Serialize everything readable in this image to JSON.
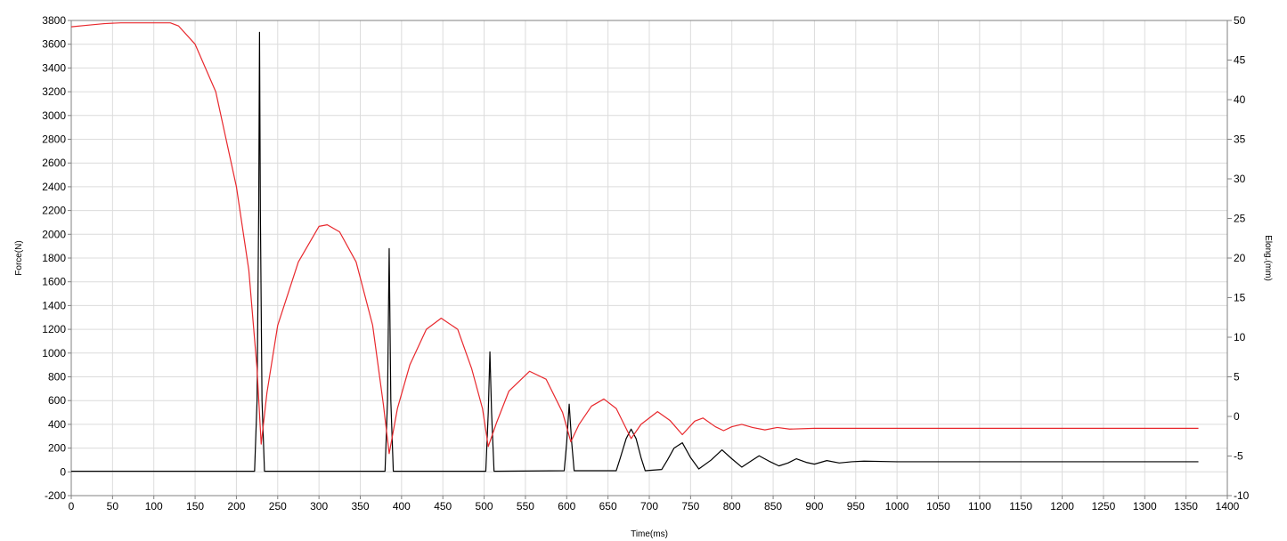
{
  "chart_data": {
    "type": "line",
    "xlabel": "Time(ms)",
    "ylabel": "Force(N)",
    "y2label": "Elong.(mm)",
    "xlim": [
      0,
      1400
    ],
    "ylim": [
      -200,
      3800
    ],
    "y2lim": [
      -10,
      50
    ],
    "grid": true,
    "x_ticks": [
      "0",
      "50",
      "100",
      "150",
      "200",
      "250",
      "300",
      "350",
      "400",
      "450",
      "500",
      "550",
      "600",
      "650",
      "700",
      "750",
      "800",
      "850",
      "900",
      "950",
      "1000",
      "1050",
      "1100",
      "1150",
      "1200",
      "1250",
      "1300",
      "1350",
      "1400"
    ],
    "y_ticks": [
      "-200",
      "0",
      "200",
      "400",
      "600",
      "800",
      "1000",
      "1200",
      "1400",
      "1600",
      "1800",
      "2000",
      "2200",
      "2400",
      "2600",
      "2800",
      "3000",
      "3200",
      "3400",
      "3600",
      "3800"
    ],
    "y2_ticks": [
      "-10",
      "-5",
      "0",
      "5",
      "10",
      "15",
      "20",
      "25",
      "30",
      "35",
      "40",
      "45",
      "50"
    ],
    "series": [
      {
        "axis": "left",
        "color": "#000000",
        "points": [
          [
            0,
            5
          ],
          [
            120,
            5
          ],
          [
            222,
            5
          ],
          [
            225,
            600
          ],
          [
            227,
            2200
          ],
          [
            228,
            3700
          ],
          [
            229,
            2200
          ],
          [
            231,
            600
          ],
          [
            234,
            5
          ],
          [
            380,
            5
          ],
          [
            383,
            600
          ],
          [
            385,
            1880
          ],
          [
            387,
            600
          ],
          [
            390,
            5
          ],
          [
            502,
            5
          ],
          [
            505,
            500
          ],
          [
            507,
            1010
          ],
          [
            509,
            500
          ],
          [
            512,
            5
          ],
          [
            597,
            10
          ],
          [
            600,
            250
          ],
          [
            603,
            570
          ],
          [
            606,
            250
          ],
          [
            609,
            10
          ],
          [
            660,
            10
          ],
          [
            665,
            120
          ],
          [
            672,
            280
          ],
          [
            678,
            360
          ],
          [
            684,
            280
          ],
          [
            690,
            120
          ],
          [
            695,
            10
          ],
          [
            715,
            20
          ],
          [
            722,
            100
          ],
          [
            730,
            200
          ],
          [
            740,
            245
          ],
          [
            750,
            120
          ],
          [
            760,
            25
          ],
          [
            775,
            100
          ],
          [
            788,
            185
          ],
          [
            800,
            110
          ],
          [
            812,
            40
          ],
          [
            823,
            90
          ],
          [
            833,
            135
          ],
          [
            845,
            90
          ],
          [
            857,
            50
          ],
          [
            868,
            75
          ],
          [
            878,
            110
          ],
          [
            890,
            80
          ],
          [
            900,
            65
          ],
          [
            915,
            95
          ],
          [
            930,
            75
          ],
          [
            945,
            85
          ],
          [
            960,
            90
          ],
          [
            1000,
            85
          ],
          [
            1100,
            85
          ],
          [
            1200,
            85
          ],
          [
            1300,
            85
          ],
          [
            1365,
            85
          ]
        ]
      },
      {
        "axis": "right",
        "color": "#e8282d",
        "points": [
          [
            0,
            49.2
          ],
          [
            20,
            49.4
          ],
          [
            40,
            49.6
          ],
          [
            60,
            49.7
          ],
          [
            120,
            49.7
          ],
          [
            130,
            49.3
          ],
          [
            150,
            47
          ],
          [
            175,
            41
          ],
          [
            200,
            29
          ],
          [
            215,
            18.5
          ],
          [
            225,
            6
          ],
          [
            230,
            -3.5
          ],
          [
            237,
            3
          ],
          [
            250,
            11.5
          ],
          [
            275,
            19.5
          ],
          [
            300,
            24
          ],
          [
            310,
            24.2
          ],
          [
            325,
            23.3
          ],
          [
            345,
            19.5
          ],
          [
            365,
            11.5
          ],
          [
            378,
            1.5
          ],
          [
            385,
            -4.7
          ],
          [
            395,
            1
          ],
          [
            410,
            6.5
          ],
          [
            430,
            11
          ],
          [
            448,
            12.4
          ],
          [
            468,
            11
          ],
          [
            485,
            6
          ],
          [
            498,
            1
          ],
          [
            505,
            -3.8
          ],
          [
            515,
            -0.8
          ],
          [
            530,
            3.2
          ],
          [
            555,
            5.7
          ],
          [
            575,
            4.7
          ],
          [
            595,
            0.5
          ],
          [
            605,
            -3.2
          ],
          [
            615,
            -1
          ],
          [
            630,
            1.3
          ],
          [
            645,
            2.2
          ],
          [
            660,
            1
          ],
          [
            678,
            -2.8
          ],
          [
            690,
            -1
          ],
          [
            710,
            0.6
          ],
          [
            725,
            -0.5
          ],
          [
            740,
            -2.3
          ],
          [
            755,
            -0.6
          ],
          [
            765,
            -0.2
          ],
          [
            780,
            -1.3
          ],
          [
            790,
            -1.8
          ],
          [
            800,
            -1.3
          ],
          [
            812,
            -1
          ],
          [
            825,
            -1.4
          ],
          [
            840,
            -1.7
          ],
          [
            855,
            -1.4
          ],
          [
            870,
            -1.6
          ],
          [
            900,
            -1.5
          ],
          [
            950,
            -1.5
          ],
          [
            1000,
            -1.5
          ],
          [
            1100,
            -1.5
          ],
          [
            1200,
            -1.5
          ],
          [
            1300,
            -1.5
          ],
          [
            1365,
            -1.5
          ]
        ]
      }
    ]
  }
}
